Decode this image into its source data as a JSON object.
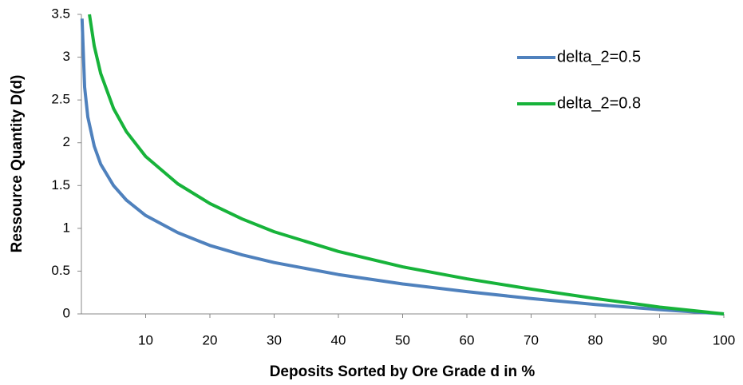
{
  "chart_data": {
    "type": "line",
    "x_label": "Deposits Sorted by Ore Grade d in %",
    "y_label": "Ressource Quantity D(d)",
    "xlim": [
      0,
      100
    ],
    "xticks": [
      10,
      20,
      30,
      40,
      50,
      60,
      70,
      80,
      90,
      100
    ],
    "ylim": [
      0,
      3.5
    ],
    "yticks": [
      0,
      0.5,
      1,
      1.5,
      2,
      2.5,
      3,
      3.5
    ],
    "grid": false,
    "legend": "upper right",
    "series": [
      {
        "name": "delta_2=0.5",
        "color": "#4f81bd",
        "x": [
          0.1,
          0.5,
          1,
          2,
          3,
          5,
          7,
          10,
          15,
          20,
          25,
          30,
          40,
          50,
          60,
          70,
          80,
          90,
          100
        ],
        "values": [
          3.45,
          2.65,
          2.3,
          1.96,
          1.75,
          1.5,
          1.33,
          1.15,
          0.95,
          0.8,
          0.69,
          0.6,
          0.46,
          0.35,
          0.26,
          0.18,
          0.11,
          0.05,
          0
        ]
      },
      {
        "name": "delta_2=0.8",
        "color": "#17b33a",
        "x": [
          1.25,
          2,
          3,
          5,
          7,
          10,
          15,
          20,
          25,
          30,
          40,
          50,
          60,
          70,
          80,
          90,
          100
        ],
        "values": [
          3.5,
          3.13,
          2.81,
          2.4,
          2.13,
          1.84,
          1.52,
          1.29,
          1.11,
          0.96,
          0.73,
          0.55,
          0.41,
          0.29,
          0.18,
          0.08,
          0
        ]
      }
    ]
  }
}
